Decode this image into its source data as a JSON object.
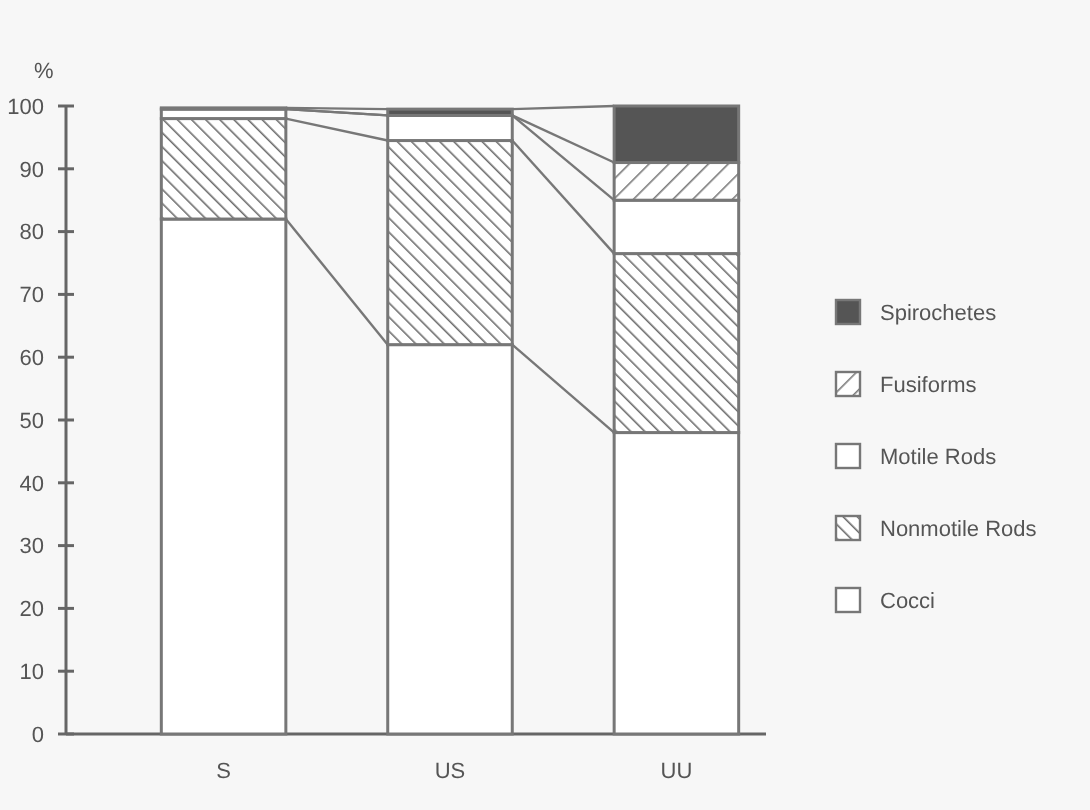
{
  "chart_data": {
    "type": "bar",
    "stacked": true,
    "ylabel": "%",
    "categories": [
      "S",
      "US",
      "UU"
    ],
    "series": [
      {
        "name": "Cocci",
        "color": "#ffffff",
        "values": [
          82,
          62,
          48
        ]
      },
      {
        "name": "Nonmotile Rods",
        "color": "#6e6e6e",
        "values": [
          16,
          32.5,
          28.5
        ]
      },
      {
        "name": "Motile Rods",
        "color": "#ffffff",
        "values": [
          1.5,
          4,
          8.5
        ]
      },
      {
        "name": "Fusiforms",
        "color": "#7a7a7a",
        "values": [
          null,
          null,
          6
        ]
      },
      {
        "name": "Spirochetes",
        "color": "#555555",
        "values": [
          0.2,
          1,
          9
        ]
      }
    ],
    "ylim": [
      0,
      100
    ],
    "yticks": [
      0,
      10,
      20,
      30,
      40,
      50,
      60,
      70,
      80,
      90,
      100
    ],
    "legend": "right",
    "grid": false
  }
}
